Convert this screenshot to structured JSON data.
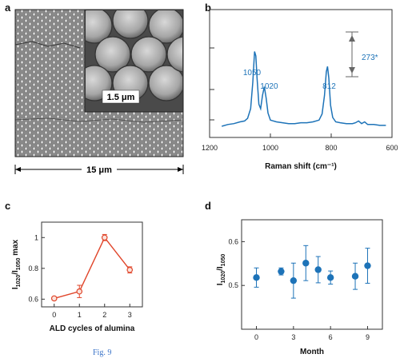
{
  "panels": {
    "a": {
      "label": "a",
      "inset_scale": "1.5 μm",
      "main_scale": "15 μm"
    },
    "b": {
      "label": "b"
    },
    "c": {
      "label": "c"
    },
    "d": {
      "label": "d"
    }
  },
  "figure_caption": "Fig. 9",
  "colors": {
    "blue": "#1d73b8",
    "red": "#e0452a"
  },
  "chart_data": [
    {
      "panel": "b",
      "type": "line",
      "xlabel": "Raman shift (cm⁻¹)",
      "ylabel": "",
      "x_reversed": true,
      "xlim": [
        1200,
        600
      ],
      "xticks": [
        1200,
        1000,
        800,
        600
      ],
      "ylim": [
        0,
        1
      ],
      "peaks": [
        {
          "x": 1050,
          "label": "1050"
        },
        {
          "x": 1020,
          "label": "1020"
        },
        {
          "x": 812,
          "label": "812"
        }
      ],
      "scale_bar_label": "273*",
      "series": [
        {
          "x": [
            1160,
            1140,
            1120,
            1100,
            1085,
            1075,
            1065,
            1058,
            1052,
            1048,
            1044,
            1038,
            1032,
            1026,
            1020,
            1014,
            1008,
            1000,
            980,
            960,
            940,
            920,
            900,
            880,
            860,
            840,
            830,
            822,
            816,
            812,
            808,
            802,
            795,
            785,
            770,
            750,
            730,
            720,
            710,
            700,
            690,
            680,
            660,
            640,
            620
          ],
          "values": [
            0.0,
            0.02,
            0.03,
            0.05,
            0.06,
            0.09,
            0.2,
            0.5,
            0.85,
            0.8,
            0.55,
            0.25,
            0.2,
            0.35,
            0.45,
            0.32,
            0.15,
            0.07,
            0.05,
            0.04,
            0.03,
            0.03,
            0.04,
            0.04,
            0.05,
            0.07,
            0.14,
            0.35,
            0.62,
            0.68,
            0.55,
            0.24,
            0.1,
            0.05,
            0.04,
            0.03,
            0.03,
            0.04,
            0.06,
            0.03,
            0.05,
            0.02,
            0.02,
            0.01,
            0.01
          ]
        }
      ]
    },
    {
      "panel": "c",
      "type": "line",
      "xlabel": "ALD cycles of alumina",
      "ylabel": "I1020/I1050 max",
      "ylabel_main": "I",
      "ylabel_sub1": "1020",
      "ylabel_slash": "/I",
      "ylabel_sub2": "1050",
      "ylabel_suffix": "max",
      "xticks": [
        0,
        1,
        2,
        3
      ],
      "yticks": [
        0.6,
        0.8,
        1
      ],
      "ytick_labels": [
        "0.6",
        "0.8",
        "1"
      ],
      "xlim": [
        -0.5,
        3.5
      ],
      "ylim": [
        0.55,
        1.1
      ],
      "series": [
        {
          "x": [
            0,
            1,
            2,
            3
          ],
          "values": [
            0.605,
            0.65,
            1.0,
            0.79
          ],
          "errors": [
            0.01,
            0.04,
            0.02,
            0.02
          ]
        }
      ]
    },
    {
      "panel": "d",
      "type": "scatter",
      "xlabel": "Month",
      "ylabel": "I1020/I1050",
      "ylabel_main": "I",
      "ylabel_sub1": "1020",
      "ylabel_slash": "/I",
      "ylabel_sub2": "1050",
      "xticks": [
        0,
        3,
        6,
        9
      ],
      "yticks": [
        0.5,
        0.6
      ],
      "ytick_labels": [
        "0.5",
        "0.6"
      ],
      "xlim": [
        -1.2,
        10.2
      ],
      "ylim": [
        0.4,
        0.65
      ],
      "series": [
        {
          "x": [
            0,
            2,
            3,
            4,
            5,
            6,
            8,
            9
          ],
          "values": [
            0.518,
            0.532,
            0.511,
            0.551,
            0.536,
            0.518,
            0.521,
            0.545
          ],
          "errors": [
            0.022,
            0.008,
            0.04,
            0.04,
            0.03,
            0.015,
            0.03,
            0.04
          ]
        }
      ]
    }
  ]
}
